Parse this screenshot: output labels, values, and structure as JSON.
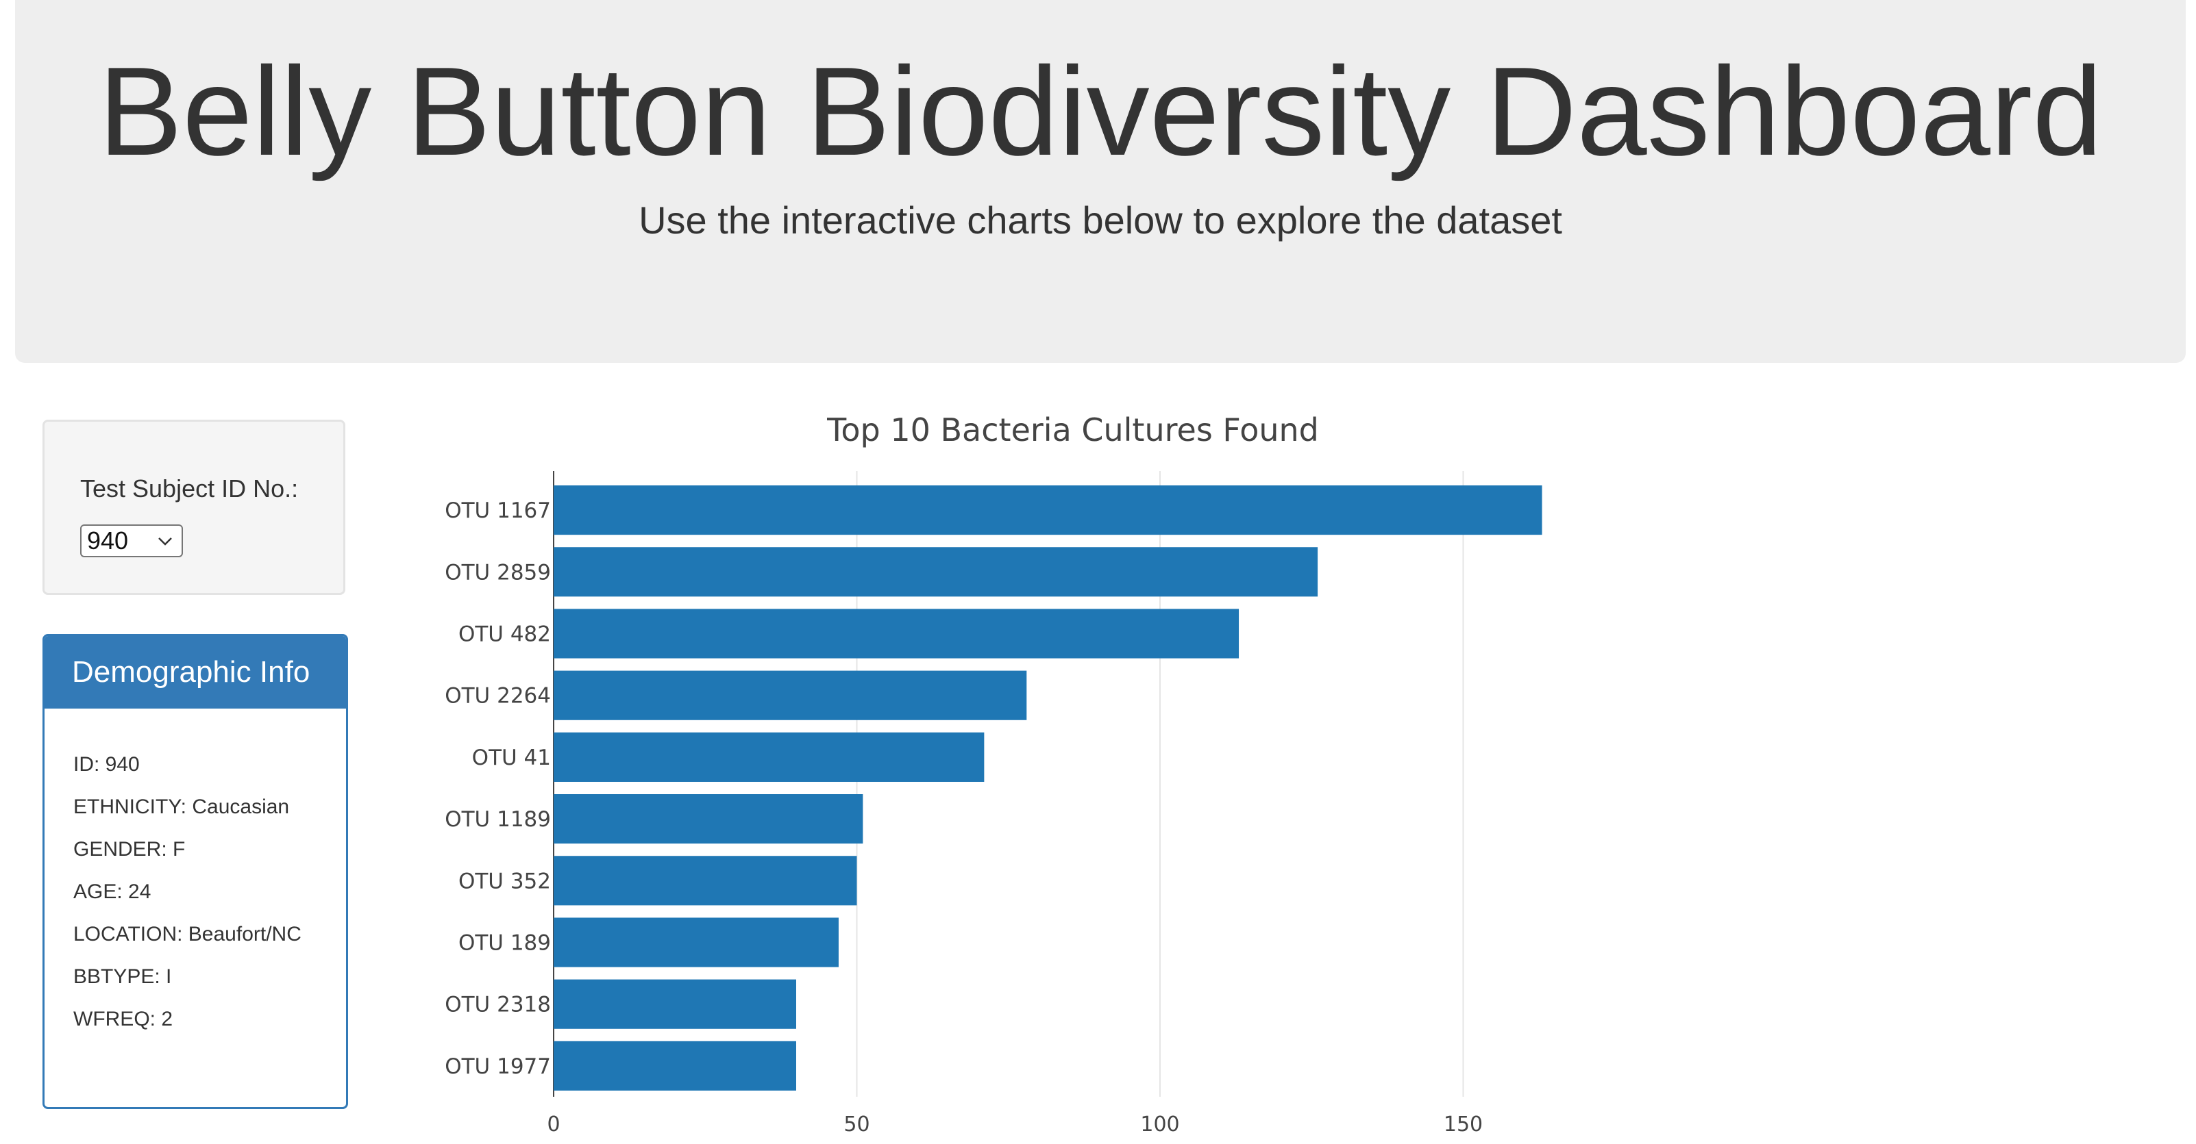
{
  "header": {
    "title": "Belly Button Biodiversity Dashboard",
    "subtitle": "Use the interactive charts below to explore the dataset"
  },
  "selector": {
    "label": "Test Subject ID No.:",
    "selected": "940"
  },
  "demographics": {
    "heading": "Demographic Info",
    "lines": [
      "ID: 940",
      "ETHNICITY: Caucasian",
      "GENDER: F",
      "AGE: 24",
      "LOCATION: Beaufort/NC",
      "BBTYPE: I",
      "WFREQ: 2"
    ]
  },
  "colors": {
    "bar": "#1f77b4",
    "panel": "#337ab7",
    "jumbotron": "#eeeeee"
  },
  "chart_data": {
    "type": "bar",
    "orientation": "horizontal",
    "title": "Top 10 Bacteria Cultures Found",
    "xlabel": "",
    "ylabel": "",
    "categories": [
      "OTU 1167",
      "OTU 2859",
      "OTU 482",
      "OTU 2264",
      "OTU 41",
      "OTU 1189",
      "OTU 352",
      "OTU 189",
      "OTU 2318",
      "OTU 1977"
    ],
    "values": [
      163,
      126,
      113,
      78,
      71,
      51,
      50,
      47,
      40,
      40
    ],
    "xlim": [
      0,
      170
    ],
    "xticks": [
      "0",
      "50",
      "100",
      "150"
    ],
    "grid": true
  }
}
